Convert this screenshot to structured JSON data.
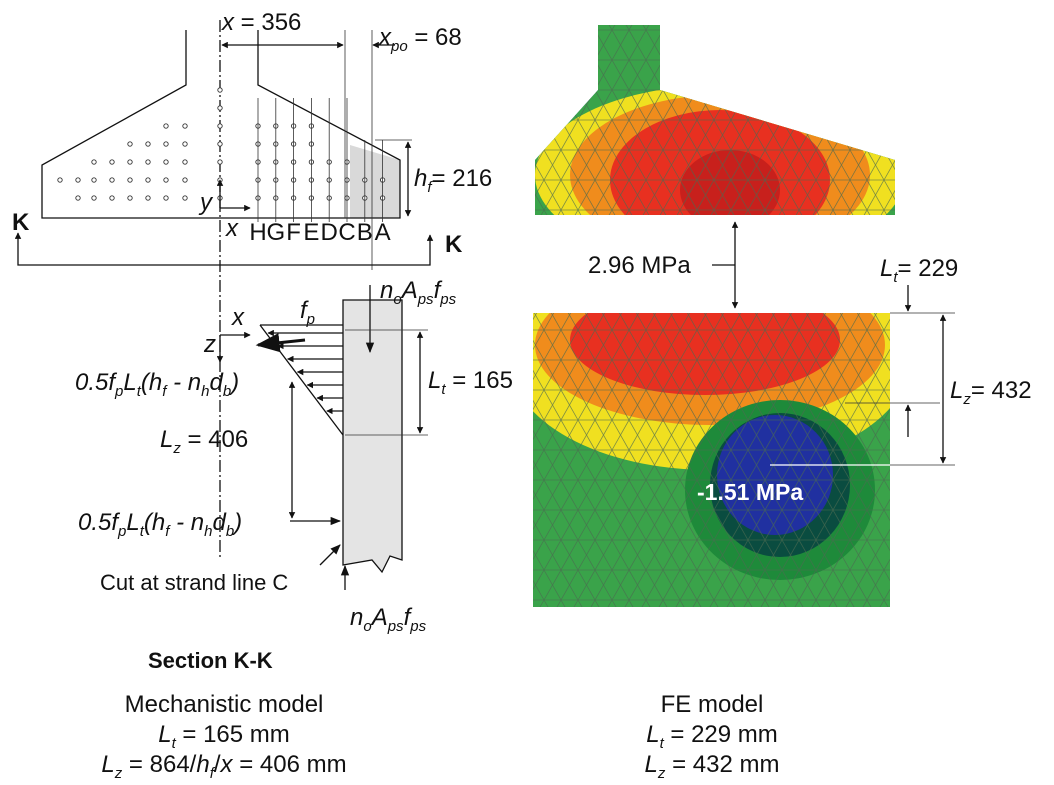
{
  "mechanistic": {
    "dim_x": [
      {
        "text": "x",
        "style": "i"
      },
      {
        "text": " = 356",
        "style": "n"
      }
    ],
    "dim_xpo": [
      {
        "text": "x",
        "style": "i"
      },
      {
        "text": "po",
        "style": "s"
      },
      {
        "text": " = 68",
        "style": "n"
      }
    ],
    "dim_hf": [
      {
        "text": "h",
        "style": "i"
      },
      {
        "text": "f",
        "style": "s"
      },
      {
        "text": "= 216",
        "style": "n"
      }
    ],
    "section_mark_left": "K",
    "section_mark_right": "K",
    "axis_y": "y",
    "axis_x": "x",
    "strand_lines": [
      "H",
      "G",
      "F",
      "E",
      "D",
      "C",
      "B",
      "A"
    ],
    "axis_x2": "x",
    "axis_z": "z",
    "fp": [
      {
        "text": "f",
        "style": "i"
      },
      {
        "text": "p",
        "style": "s"
      }
    ],
    "force_top": [
      {
        "text": "n",
        "style": "i"
      },
      {
        "text": "o",
        "style": "s"
      },
      {
        "text": "A",
        "style": "i"
      },
      {
        "text": "ps",
        "style": "s"
      },
      {
        "text": "f",
        "style": "i"
      },
      {
        "text": "ps",
        "style": "s"
      }
    ],
    "dim_lt": [
      {
        "text": "L",
        "style": "i"
      },
      {
        "text": "t",
        "style": "s"
      },
      {
        "text": " = 165",
        "style": "n"
      }
    ],
    "force_label_1": [
      {
        "text": "0.5f",
        "style": "i"
      },
      {
        "text": "p",
        "style": "s"
      },
      {
        "text": "L",
        "style": "i"
      },
      {
        "text": "t",
        "style": "s"
      },
      {
        "text": "(h",
        "style": "i"
      },
      {
        "text": "f",
        "style": "s"
      },
      {
        "text": " - n",
        "style": "i"
      },
      {
        "text": "h",
        "style": "s"
      },
      {
        "text": "d",
        "style": "i"
      },
      {
        "text": "b",
        "style": "s"
      },
      {
        "text": ")",
        "style": "i"
      }
    ],
    "dim_lz": [
      {
        "text": "L",
        "style": "i"
      },
      {
        "text": "z",
        "style": "s"
      },
      {
        "text": " = 406",
        "style": "n"
      }
    ],
    "force_label_2": [
      {
        "text": "0.5f",
        "style": "i"
      },
      {
        "text": "p",
        "style": "s"
      },
      {
        "text": "L",
        "style": "i"
      },
      {
        "text": "t",
        "style": "s"
      },
      {
        "text": "(h",
        "style": "i"
      },
      {
        "text": "f",
        "style": "s"
      },
      {
        "text": " - n",
        "style": "i"
      },
      {
        "text": "h",
        "style": "s"
      },
      {
        "text": "d",
        "style": "i"
      },
      {
        "text": "b",
        "style": "s"
      },
      {
        "text": ")",
        "style": "i"
      }
    ],
    "cut_note": "Cut at strand line C",
    "force_bottom": [
      {
        "text": "n",
        "style": "i"
      },
      {
        "text": "o",
        "style": "s"
      },
      {
        "text": "A",
        "style": "i"
      },
      {
        "text": "ps",
        "style": "s"
      },
      {
        "text": "f",
        "style": "i"
      },
      {
        "text": "ps",
        "style": "s"
      }
    ],
    "section_title": "Section K-K",
    "caption": {
      "title": "Mechanistic model",
      "line1": [
        {
          "text": "L",
          "style": "i"
        },
        {
          "text": "t",
          "style": "s"
        },
        {
          "text": " = 165 mm",
          "style": "n"
        }
      ],
      "line2": [
        {
          "text": "L",
          "style": "i"
        },
        {
          "text": "z",
          "style": "s"
        },
        {
          "text": " = 864/",
          "style": "n"
        },
        {
          "text": "h",
          "style": "i"
        },
        {
          "text": "f",
          "style": "s"
        },
        {
          "text": "/",
          "style": "n"
        },
        {
          "text": "x",
          "style": "i"
        },
        {
          "text": " = 406 mm",
          "style": "n"
        }
      ]
    }
  },
  "fe": {
    "stress_top": "2.96 MPa",
    "dim_lt": [
      {
        "text": "L",
        "style": "i"
      },
      {
        "text": "t",
        "style": "s"
      },
      {
        "text": "= 229",
        "style": "n"
      }
    ],
    "dim_lz": [
      {
        "text": "L",
        "style": "i"
      },
      {
        "text": "z",
        "style": "s"
      },
      {
        "text": "= 432",
        "style": "n"
      }
    ],
    "stress_bottom": "-1.51 MPa",
    "caption": {
      "title": "FE model",
      "line1": [
        {
          "text": "L",
          "style": "i"
        },
        {
          "text": "t",
          "style": "s"
        },
        {
          "text": " = 229 mm",
          "style": "n"
        }
      ],
      "line2": [
        {
          "text": "L",
          "style": "i"
        },
        {
          "text": "z",
          "style": "s"
        },
        {
          "text": " = 432 mm",
          "style": "n"
        }
      ]
    }
  }
}
